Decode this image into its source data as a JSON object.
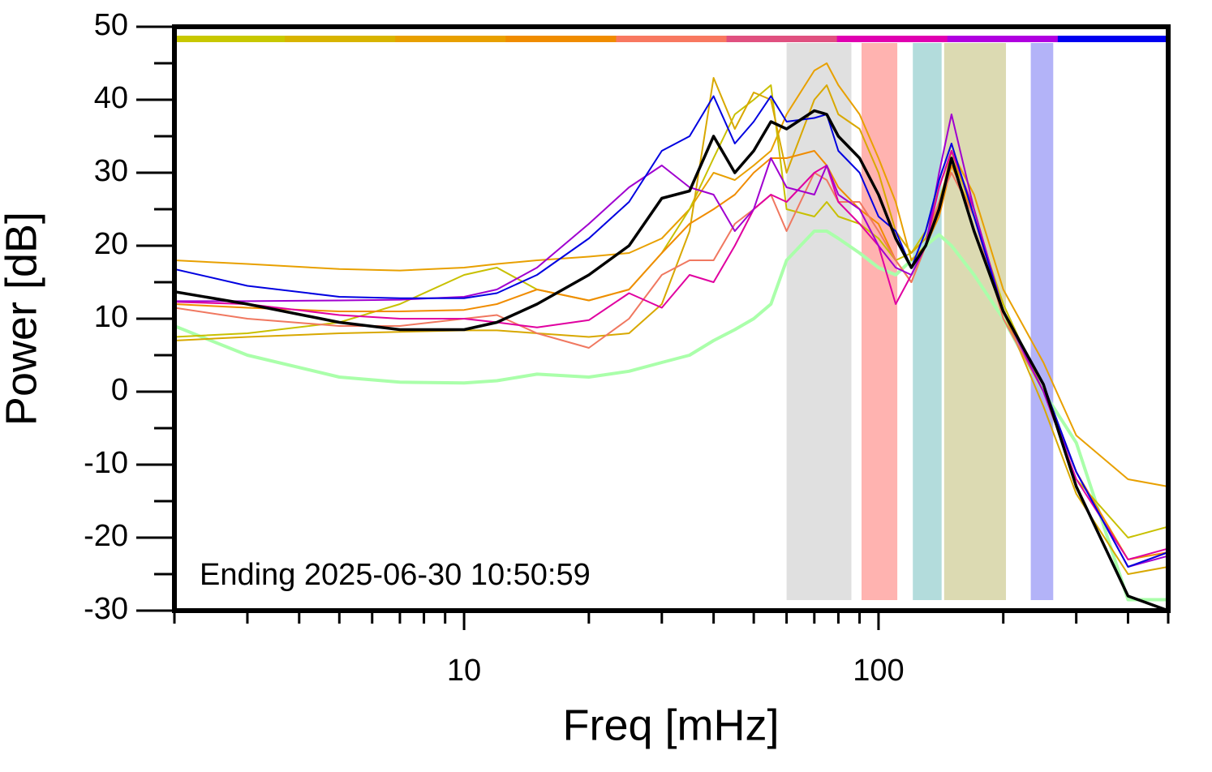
{
  "chart_data": {
    "type": "line",
    "xlabel": "Freq [mHz]",
    "ylabel": "Power [dB]",
    "annotation": "Ending 2025-06-30 10:50:59",
    "xscale": "log",
    "xlim": [
      2,
      500
    ],
    "ylim": [
      -30,
      50
    ],
    "xticks": [
      10,
      100
    ],
    "xminor_ticks": [
      2,
      3,
      4,
      5,
      6,
      7,
      8,
      9,
      20,
      30,
      40,
      50,
      60,
      70,
      80,
      90,
      200,
      300,
      400,
      500
    ],
    "yticks": [
      -30,
      -20,
      -10,
      0,
      10,
      20,
      30,
      40,
      50
    ],
    "yminor_ticks": [
      -25,
      -15,
      -5,
      5,
      15,
      25,
      35,
      45
    ],
    "bands": [
      {
        "x": [
          60,
          86
        ],
        "color": "#e0e0e0"
      },
      {
        "x": [
          91,
          111
        ],
        "color": "#ffb3b0"
      },
      {
        "x": [
          121,
          142
        ],
        "color": "#b3dcdc"
      },
      {
        "x": [
          144,
          203
        ],
        "color": "#dcdab2"
      },
      {
        "x": [
          233,
          264
        ],
        "color": "#b3b3f8"
      }
    ],
    "top_bar_colors": [
      "#c8c800",
      "#d8b400",
      "#e8a000",
      "#f08c00",
      "#f87860",
      "#e05080",
      "#e000b0",
      "#b000e0",
      "#0000f0"
    ],
    "x": [
      2,
      3,
      5,
      7,
      10,
      12,
      15,
      20,
      25,
      30,
      35,
      40,
      45,
      50,
      55,
      60,
      70,
      75,
      80,
      90,
      100,
      110,
      120,
      130,
      140,
      150,
      170,
      200,
      250,
      300,
      400,
      500
    ],
    "series": [
      {
        "color": "#aaffaa",
        "width": 4,
        "values": [
          9,
          5,
          2,
          1.3,
          1.2,
          1.5,
          2.4,
          2,
          2.8,
          4,
          5,
          7,
          8.5,
          10,
          12,
          18,
          22,
          22,
          21,
          19,
          17,
          16,
          18,
          20,
          21.5,
          20,
          16,
          10,
          0,
          -7,
          -28.5,
          -28.5
        ]
      },
      {
        "color": "#e8a000",
        "width": 2,
        "values": [
          18,
          17.5,
          16.8,
          16.6,
          17,
          17.5,
          18,
          18.5,
          19,
          21,
          25,
          30,
          29,
          31,
          33,
          38,
          44,
          45,
          42,
          38,
          32,
          26,
          18,
          20,
          25,
          33,
          27,
          14,
          4,
          -6,
          -12,
          -13
        ]
      },
      {
        "color": "#c8c000",
        "width": 2,
        "values": [
          7.5,
          8,
          9.5,
          12,
          16,
          17,
          14,
          12.5,
          14,
          19,
          25,
          32,
          38,
          40,
          42,
          25,
          24,
          26,
          24,
          23,
          21,
          18,
          19,
          22,
          28,
          33,
          24,
          12,
          0,
          -12,
          -20,
          -18.5
        ]
      },
      {
        "color": "#d8a800",
        "width": 2,
        "values": [
          7,
          7.5,
          8,
          8.2,
          8.4,
          8.4,
          8,
          7.5,
          8,
          12,
          22,
          43,
          36,
          41,
          40,
          30,
          40,
          42,
          38,
          36,
          30,
          22,
          19,
          21,
          26,
          32,
          25,
          11,
          -2,
          -14,
          -25,
          -24
        ]
      },
      {
        "color": "#f08c00",
        "width": 2,
        "values": [
          12,
          11.5,
          11,
          11,
          11.2,
          12,
          14,
          12.5,
          14,
          19,
          23,
          25,
          27,
          30,
          32,
          32,
          33,
          31,
          28,
          25,
          23,
          18,
          15,
          20,
          24,
          31,
          24,
          11,
          1,
          -11,
          -23,
          -22
        ]
      },
      {
        "color": "#f07860",
        "width": 2,
        "values": [
          11.5,
          10,
          9,
          9,
          10,
          10.5,
          8,
          6,
          10,
          16,
          18,
          18,
          23,
          25,
          27,
          22,
          30,
          29,
          26,
          26,
          22,
          18,
          15,
          20,
          26,
          30,
          24,
          10,
          0,
          -11,
          -24,
          -22
        ]
      },
      {
        "color": "#e000a0",
        "width": 2,
        "values": [
          12.3,
          12,
          10.5,
          10,
          10,
          9.5,
          8.8,
          9.8,
          13.5,
          11.5,
          16,
          15,
          20,
          25,
          27,
          26,
          30,
          31,
          26,
          23,
          20,
          12,
          16,
          20,
          28,
          33,
          25,
          11,
          0,
          -12,
          -23,
          -21.5
        ]
      },
      {
        "color": "#a000d0",
        "width": 2,
        "values": [
          12.4,
          12.4,
          12.5,
          12.6,
          13,
          14,
          17,
          23,
          28,
          31,
          28,
          27,
          22,
          25,
          32,
          28,
          27,
          31,
          27,
          25,
          20,
          17,
          16,
          20,
          30,
          38,
          25,
          11,
          0,
          -11,
          -24,
          -22.5
        ]
      },
      {
        "color": "#0000e0",
        "width": 2,
        "values": [
          16.8,
          14.5,
          13,
          12.8,
          12.8,
          13.5,
          16,
          21,
          26,
          33,
          35,
          40.5,
          34,
          37,
          40.5,
          37,
          37.5,
          38,
          33,
          30,
          24,
          22,
          17,
          22,
          29,
          34,
          24,
          11,
          1,
          -11,
          -24,
          -22
        ]
      },
      {
        "color": "#000000",
        "width": 3.5,
        "values": [
          13.7,
          12,
          9.5,
          8.5,
          8.5,
          9.5,
          12,
          16,
          20,
          26.5,
          27.5,
          35,
          30,
          33,
          37,
          36,
          38.5,
          38,
          35,
          32,
          27,
          21,
          17,
          20,
          25,
          32,
          22,
          11,
          1,
          -13,
          -28,
          -30
        ]
      }
    ]
  }
}
